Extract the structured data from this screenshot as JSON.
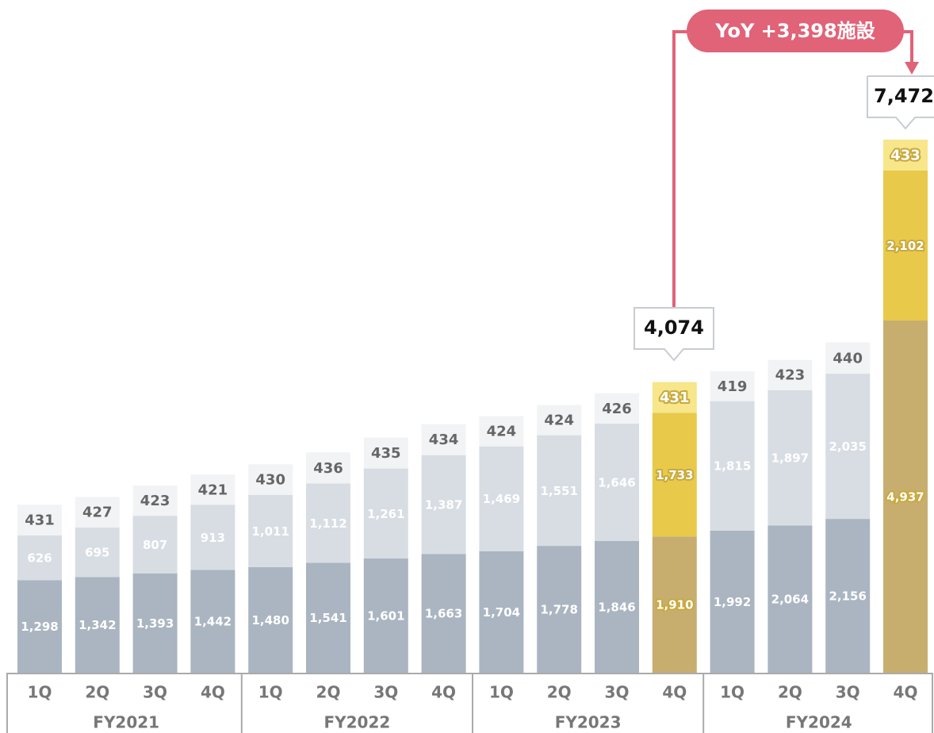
{
  "chart_data": {
    "type": "stacked_bar",
    "categories": [
      "1Q",
      "2Q",
      "3Q",
      "4Q",
      "1Q",
      "2Q",
      "3Q",
      "4Q",
      "1Q",
      "2Q",
      "3Q",
      "4Q",
      "1Q",
      "2Q",
      "3Q",
      "4Q"
    ],
    "groups": [
      "FY2021",
      "FY2022",
      "FY2023",
      "FY2024"
    ],
    "series": [
      {
        "values": [
          1298,
          1342,
          1393,
          1442,
          1480,
          1541,
          1601,
          1663,
          1704,
          1778,
          1846,
          1910,
          1992,
          2064,
          2156,
          4937
        ],
        "value_labels": [
          "1,298",
          "1,342",
          "1,393",
          "1,442",
          "1,480",
          "1,541",
          "1,601",
          "1,663",
          "1,704",
          "1,778",
          "1,846",
          "1,910",
          "1,992",
          "2,064",
          "2,156",
          "4,937"
        ],
        "colors": [
          "#aab5c1",
          "#aab5c1",
          "#aab5c1",
          "#aab5c1",
          "#aab5c1",
          "#aab5c1",
          "#aab5c1",
          "#aab5c1",
          "#aab5c1",
          "#aab5c1",
          "#aab5c1",
          "#c8ae6e",
          "#aab5c1",
          "#aab5c1",
          "#aab5c1",
          "#c8ae6e"
        ]
      },
      {
        "values": [
          626,
          695,
          807,
          913,
          1011,
          1112,
          1261,
          1387,
          1469,
          1551,
          1646,
          1733,
          1815,
          1897,
          2035,
          2102
        ],
        "value_labels": [
          "626",
          "695",
          "807",
          "913",
          "1,011",
          "1,112",
          "1,261",
          "1,387",
          "1,469",
          "1,551",
          "1,646",
          "1,733",
          "1,815",
          "1,897",
          "2,035",
          "2,102"
        ],
        "colors": [
          "#d8dde4",
          "#d8dde4",
          "#d8dde4",
          "#d8dde4",
          "#d8dde4",
          "#d8dde4",
          "#d8dde4",
          "#d8dde4",
          "#d8dde4",
          "#d8dde4",
          "#d8dde4",
          "#e8c94a",
          "#d8dde4",
          "#d8dde4",
          "#d8dde4",
          "#e8c94a"
        ]
      },
      {
        "values": [
          431,
          427,
          423,
          421,
          430,
          436,
          435,
          434,
          424,
          424,
          426,
          431,
          419,
          423,
          440,
          433
        ],
        "colors": [
          "#f2f3f5",
          "#f2f3f5",
          "#f2f3f5",
          "#f2f3f5",
          "#f2f3f5",
          "#f2f3f5",
          "#f2f3f5",
          "#f2f3f5",
          "#f2f3f5",
          "#f2f3f5",
          "#f2f3f5",
          "#f7e68a",
          "#f2f3f5",
          "#f2f3f5",
          "#f2f3f5",
          "#f7e68a"
        ]
      }
    ],
    "annotations": [
      "4,074",
      "7,472",
      "YoY +3,398施設"
    ]
  }
}
